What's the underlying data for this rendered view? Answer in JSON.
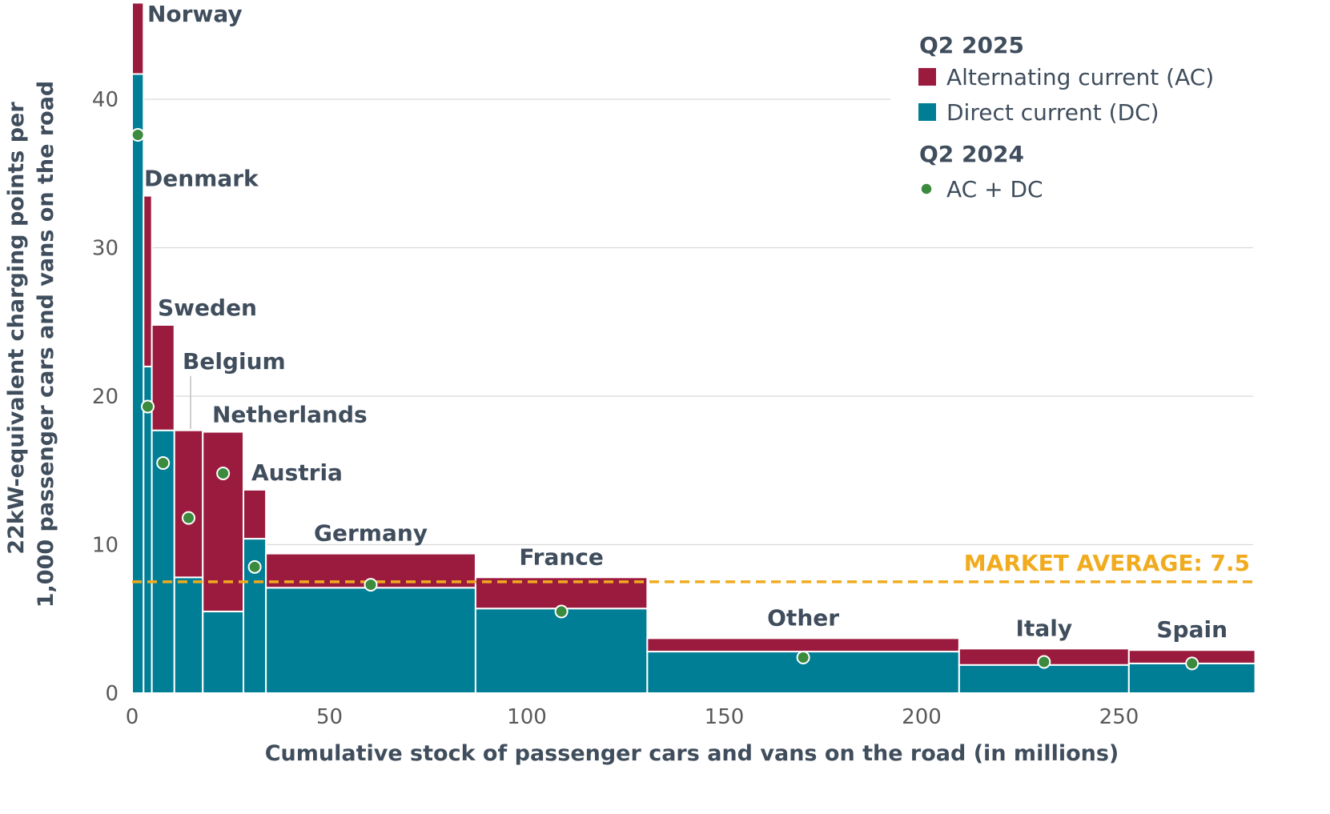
{
  "chart_data": {
    "type": "bar",
    "subtype": "variable-width stacked (marimekko)",
    "xlabel": "Cumulative stock of passenger cars and vans on the road (in millions)",
    "ylabel_lines": [
      "22kW-equivalent charging points per",
      "1,000 passenger cars and vans on the road"
    ],
    "xlim": [
      0,
      285
    ],
    "ylim": [
      0,
      45
    ],
    "x_ticks": [
      0,
      50,
      100,
      150,
      200,
      250
    ],
    "y_ticks": [
      0,
      10,
      20,
      30,
      40
    ],
    "grid": "horizontal",
    "legend_position": "top-right",
    "legend": {
      "group1_title": "Q2 2025",
      "ac_label": "Alternating current (AC)",
      "dc_label": "Direct current (DC)",
      "group2_title": "Q2 2024",
      "dot_label": "AC + DC"
    },
    "colors": {
      "ac": "#9b1b3e",
      "dc": "#007e96",
      "dot": "#3b8a3e",
      "average": "#f0ab1e",
      "grid": "#d9d9d9"
    },
    "market_average": {
      "label": "MARKET AVERAGE: 7.5",
      "value": 7.5
    },
    "countries": [
      {
        "name": "Norway",
        "x0": 0,
        "x1": 2.9,
        "dc": 41.7,
        "total": 46.5,
        "q2_2024": 37.6
      },
      {
        "name": "Denmark",
        "x0": 2.9,
        "x1": 5.0,
        "dc": 22.0,
        "total": 33.5,
        "q2_2024": 19.3
      },
      {
        "name": "Sweden",
        "x0": 5.0,
        "x1": 10.7,
        "dc": 17.7,
        "total": 24.8,
        "q2_2024": 15.5
      },
      {
        "name": "Belgium",
        "x0": 10.7,
        "x1": 17.9,
        "dc": 7.8,
        "total": 17.7,
        "q2_2024": 11.8
      },
      {
        "name": "Netherlands",
        "x0": 17.9,
        "x1": 28.2,
        "dc": 5.5,
        "total": 17.6,
        "q2_2024": 14.8
      },
      {
        "name": "Austria",
        "x0": 28.2,
        "x1": 33.9,
        "dc": 10.4,
        "total": 13.7,
        "q2_2024": 8.5
      },
      {
        "name": "Germany",
        "x0": 33.9,
        "x1": 87.0,
        "dc": 7.1,
        "total": 9.4,
        "q2_2024": 7.3
      },
      {
        "name": "France",
        "x0": 87.0,
        "x1": 130.5,
        "dc": 5.7,
        "total": 7.8,
        "q2_2024": 5.5
      },
      {
        "name": "Other",
        "x0": 130.5,
        "x1": 209.5,
        "dc": 2.8,
        "total": 3.7,
        "q2_2024": 2.4
      },
      {
        "name": "Italy",
        "x0": 209.5,
        "x1": 252.5,
        "dc": 1.9,
        "total": 3.0,
        "q2_2024": 2.1
      },
      {
        "name": "Spain",
        "x0": 252.5,
        "x1": 284.5,
        "dc": 2.0,
        "total": 2.9,
        "q2_2024": 2.0
      }
    ]
  }
}
